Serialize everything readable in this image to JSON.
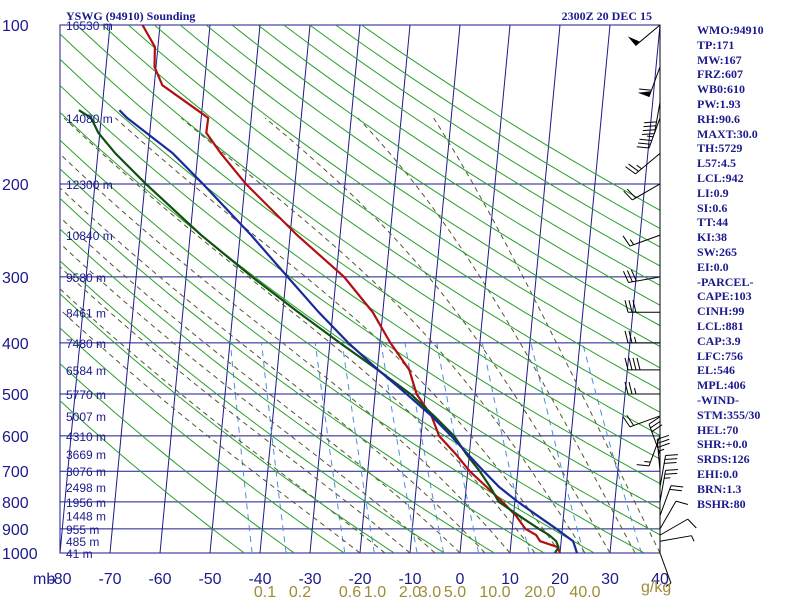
{
  "header": {
    "title_left": "YSWG (94910) Sounding",
    "title_right": "2300Z 20 DEC 15"
  },
  "indices": [
    "WMO:94910",
    "TP:171",
    "MW:167",
    "FRZ:607",
    "WB0:610",
    "PW:1.93",
    "RH:90.6",
    "MAXT:30.0",
    "TH:5729",
    "L57:4.5",
    "LCL:942",
    "LI:0.9",
    "SI:0.6",
    "TT:44",
    "KI:38",
    "SW:265",
    "EI:0.0",
    "-PARCEL-",
    "CAPE:103",
    "CINH:99",
    "LCL:881",
    "CAP:3.9",
    "LFC:756",
    "EL:546",
    "MPL:406",
    "-WIND-",
    "STM:355/30",
    "HEL:70",
    "SHR:+0.0",
    "SRDS:126",
    "EHI:0.0",
    "BRN:1.3",
    "BSHR:80"
  ],
  "colors": {
    "isobar": "#1a1a8c",
    "isotherm": "#1a1a8c",
    "dry_adiabat": "#2aa02a",
    "moist_adiabat": "#555533",
    "mixing_ratio": "#4a90d9",
    "temperature": "#b01010",
    "dewpoint": "#105010",
    "parcel": "#1a2a9c",
    "wind_barb": "#000000"
  },
  "chart_data": {
    "type": "line",
    "subtype": "skew-t log-p sounding",
    "pressure_label": "mb",
    "pressure_levels": [
      100,
      200,
      300,
      400,
      500,
      600,
      700,
      800,
      900,
      1000
    ],
    "pressure_range": [
      100,
      1000
    ],
    "temperature_range": [
      -80,
      40
    ],
    "temperature_ticks": [
      -80,
      -70,
      -60,
      -50,
      -40,
      -30,
      -20,
      -10,
      0,
      10,
      20,
      30,
      40
    ],
    "mixing_ratio_ticks": [
      {
        "label": "0.1",
        "t": -39
      },
      {
        "label": "0.2",
        "t": -32
      },
      {
        "label": "0.6",
        "t": -22
      },
      {
        "label": "1.0",
        "t": -17
      },
      {
        "label": "2.0",
        "t": -10
      },
      {
        "label": "3.0",
        "t": -6
      },
      {
        "label": "5.0",
        "t": -1
      },
      {
        "label": "10.0",
        "t": 7
      },
      {
        "label": "20.0",
        "t": 16
      },
      {
        "label": "40.0",
        "t": 25
      }
    ],
    "mixing_ratio_unit": "g/kg",
    "height_labels": [
      {
        "p": 100,
        "label": "16530 m"
      },
      {
        "p": 150,
        "label": "14080 m"
      },
      {
        "p": 200,
        "label": "12300 m"
      },
      {
        "p": 250,
        "label": "10840 m"
      },
      {
        "p": 300,
        "label": "9580 m"
      },
      {
        "p": 350,
        "label": "8461 m"
      },
      {
        "p": 400,
        "label": "7480 m"
      },
      {
        "p": 450,
        "label": "6584 m"
      },
      {
        "p": 500,
        "label": "5770 m"
      },
      {
        "p": 550,
        "label": "5007 m"
      },
      {
        "p": 600,
        "label": "4310 m"
      },
      {
        "p": 650,
        "label": "3669 m"
      },
      {
        "p": 700,
        "label": "3076 m"
      },
      {
        "p": 750,
        "label": "2498 m"
      },
      {
        "p": 800,
        "label": "1956 m"
      },
      {
        "p": 850,
        "label": "1448 m"
      },
      {
        "p": 900,
        "label": "955 m"
      },
      {
        "p": 950,
        "label": "485 m"
      },
      {
        "p": 1000,
        "label": "41 m"
      }
    ],
    "series": [
      {
        "role": "temperature",
        "points": [
          [
            1000,
            20
          ],
          [
            975,
            19.5
          ],
          [
            950,
            15.8
          ],
          [
            925,
            14.9
          ],
          [
            900,
            12.6
          ],
          [
            850,
            10.5
          ],
          [
            800,
            7.5
          ],
          [
            750,
            4.1
          ],
          [
            700,
            0.4
          ],
          [
            650,
            -2.7
          ],
          [
            600,
            -6.4
          ],
          [
            550,
            -8.3
          ],
          [
            500,
            -11.7
          ],
          [
            450,
            -13.6
          ],
          [
            400,
            -17.9
          ],
          [
            350,
            -22.0
          ],
          [
            300,
            -28.4
          ],
          [
            250,
            -38.6
          ],
          [
            200,
            -49.8
          ],
          [
            175,
            -55.4
          ],
          [
            160,
            -58.7
          ],
          [
            150,
            -58.6
          ],
          [
            145,
            -60.9
          ],
          [
            130,
            -68.4
          ],
          [
            120,
            -70.3
          ],
          [
            110,
            -70.6
          ],
          [
            100,
            -73.5
          ]
        ]
      },
      {
        "role": "dewpoint",
        "points": [
          [
            1000,
            19.0
          ],
          [
            975,
            19.6
          ],
          [
            950,
            19.0
          ],
          [
            925,
            17.5
          ],
          [
            900,
            15.3
          ],
          [
            850,
            11.1
          ],
          [
            800,
            6.8
          ],
          [
            750,
            4.8
          ],
          [
            700,
            2.4
          ],
          [
            650,
            -0.6
          ],
          [
            600,
            -3.4
          ],
          [
            550,
            -7.8
          ],
          [
            500,
            -12.9
          ],
          [
            450,
            -19.9
          ],
          [
            400,
            -28.0
          ],
          [
            350,
            -36.9
          ],
          [
            300,
            -46.8
          ],
          [
            250,
            -57.8
          ],
          [
            200,
            -69.8
          ],
          [
            175,
            -76.5
          ],
          [
            160,
            -80.3
          ],
          [
            150,
            -82.0
          ],
          [
            145,
            -84.6
          ]
        ]
      },
      {
        "role": "parcel",
        "points": [
          [
            1000,
            23.4
          ],
          [
            950,
            22.4
          ],
          [
            900,
            18.8
          ],
          [
            850,
            14.8
          ],
          [
            800,
            10.6
          ],
          [
            750,
            6.6
          ],
          [
            700,
            3.2
          ],
          [
            650,
            -0.3
          ],
          [
            600,
            -4.0
          ],
          [
            550,
            -8.3
          ],
          [
            500,
            -13.7
          ],
          [
            450,
            -19.8
          ],
          [
            400,
            -26.3
          ],
          [
            350,
            -32.8
          ],
          [
            300,
            -39.7
          ],
          [
            250,
            -47.8
          ],
          [
            200,
            -58.4
          ],
          [
            175,
            -65.0
          ],
          [
            150,
            -74.8
          ],
          [
            145,
            -76.5
          ]
        ]
      }
    ],
    "wind_barbs": [
      {
        "p": 1000,
        "dir": 160,
        "spd": 5
      },
      {
        "p": 950,
        "dir": 80,
        "spd": 5
      },
      {
        "p": 925,
        "dir": 60,
        "spd": 10
      },
      {
        "p": 900,
        "dir": 30,
        "spd": 10
      },
      {
        "p": 850,
        "dir": 20,
        "spd": 20
      },
      {
        "p": 800,
        "dir": 10,
        "spd": 25
      },
      {
        "p": 750,
        "dir": 10,
        "spd": 30
      },
      {
        "p": 700,
        "dir": 355,
        "spd": 35
      },
      {
        "p": 650,
        "dir": 340,
        "spd": 30
      },
      {
        "p": 600,
        "dir": 200,
        "spd": 15
      },
      {
        "p": 550,
        "dir": 250,
        "spd": 20
      },
      {
        "p": 500,
        "dir": 270,
        "spd": 25
      },
      {
        "p": 450,
        "dir": 270,
        "spd": 40
      },
      {
        "p": 400,
        "dir": 270,
        "spd": 25
      },
      {
        "p": 350,
        "dir": 270,
        "spd": 30
      },
      {
        "p": 300,
        "dir": 260,
        "spd": 30
      },
      {
        "p": 250,
        "dir": 250,
        "spd": 15
      },
      {
        "p": 200,
        "dir": 240,
        "spd": 20
      },
      {
        "p": 175,
        "dir": 230,
        "spd": 25
      },
      {
        "p": 150,
        "dir": 200,
        "spd": 35
      },
      {
        "p": 140,
        "dir": 190,
        "spd": 40
      },
      {
        "p": 120,
        "dir": 200,
        "spd": 60
      },
      {
        "p": 100,
        "dir": 230,
        "spd": 50
      }
    ]
  }
}
